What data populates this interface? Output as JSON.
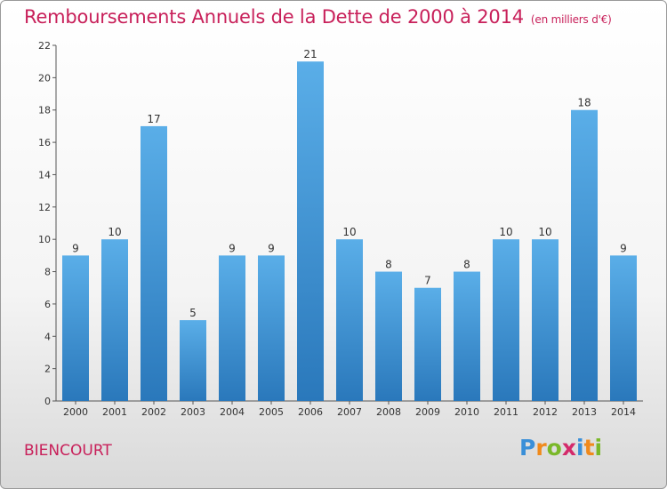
{
  "title": "Remboursements Annuels de la Dette de 2000 à 2014",
  "subtitle": "(en milliers d'€)",
  "place": "BIENCOURT",
  "logo": {
    "letters": [
      "P",
      "r",
      "o",
      "x",
      "i",
      "t",
      "i"
    ],
    "colors": [
      "#3a8fd8",
      "#f08a1c",
      "#7ab829",
      "#d42a6a",
      "#3a8fd8",
      "#f08a1c",
      "#7ab829"
    ]
  },
  "colors": {
    "bar_top": "#5aaee8",
    "bar_bottom": "#2a78bb",
    "title": "#c8205a"
  },
  "chart_data": {
    "type": "bar",
    "categories": [
      "2000",
      "2001",
      "2002",
      "2003",
      "2004",
      "2005",
      "2006",
      "2007",
      "2008",
      "2009",
      "2010",
      "2011",
      "2012",
      "2013",
      "2014"
    ],
    "values": [
      9,
      10,
      17,
      5,
      9,
      9,
      21,
      10,
      8,
      7,
      8,
      10,
      10,
      18,
      9
    ],
    "yticks": [
      0,
      2,
      4,
      6,
      8,
      10,
      12,
      14,
      16,
      18,
      20,
      22
    ],
    "ylim": [
      0,
      22
    ],
    "grid": false
  }
}
